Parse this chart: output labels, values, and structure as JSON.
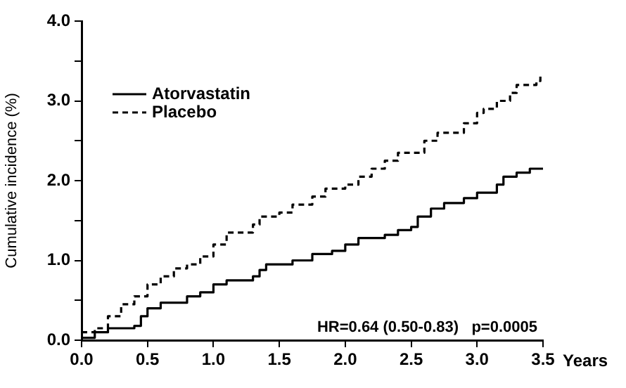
{
  "chart_data": {
    "type": "step",
    "xlabel": "Years",
    "ylabel": "Cumulative incidence (%)",
    "xlim": [
      0,
      3.5
    ],
    "xticks": [
      {
        "value": 0,
        "label": "0.0"
      },
      {
        "value": 0.5,
        "label": "0.5"
      },
      {
        "value": 1,
        "label": "1.0"
      },
      {
        "value": 1.5,
        "label": "1.5"
      },
      {
        "value": 2,
        "label": "2.0"
      },
      {
        "value": 2.5,
        "label": "2.5"
      },
      {
        "value": 3,
        "label": "3.0"
      },
      {
        "value": 3.5,
        "label": "3.5"
      }
    ],
    "ylim": [
      0,
      4
    ],
    "yticks": [
      {
        "value": 0,
        "label": "0.0"
      },
      {
        "value": 0.5,
        "label": null
      },
      {
        "value": 1,
        "label": "1.0"
      },
      {
        "value": 1.5,
        "label": null
      },
      {
        "value": 2,
        "label": "2.0"
      },
      {
        "value": 2.5,
        "label": null
      },
      {
        "value": 3,
        "label": "3.0"
      },
      {
        "value": 3.5,
        "label": null
      },
      {
        "value": 4,
        "label": "4.0"
      }
    ],
    "legend": "top left",
    "grid": false,
    "marker": "none",
    "annotations": [
      "HR=0.64 (0.50-0.83)   p=0.0005"
    ],
    "series": [
      {
        "name": "Atorvastatin",
        "color": "#000000",
        "line_style": "solid",
        "x": [
          0,
          0.1,
          0.2,
          0.4,
          0.45,
          0.5,
          0.6,
          0.8,
          0.9,
          1.0,
          1.1,
          1.3,
          1.35,
          1.4,
          1.6,
          1.75,
          1.9,
          2.0,
          2.1,
          2.3,
          2.4,
          2.5,
          2.55,
          2.65,
          2.75,
          2.9,
          3.0,
          3.15,
          3.2,
          3.3,
          3.4,
          3.5
        ],
        "values": [
          0.03,
          0.1,
          0.15,
          0.18,
          0.3,
          0.4,
          0.47,
          0.55,
          0.6,
          0.7,
          0.75,
          0.8,
          0.88,
          0.95,
          1.0,
          1.08,
          1.12,
          1.2,
          1.28,
          1.32,
          1.38,
          1.42,
          1.55,
          1.65,
          1.72,
          1.78,
          1.85,
          1.95,
          2.05,
          2.1,
          2.15,
          2.15
        ]
      },
      {
        "name": "Placebo",
        "color": "#000000",
        "line_style": "dashed",
        "x": [
          0,
          0.1,
          0.2,
          0.3,
          0.4,
          0.5,
          0.6,
          0.7,
          0.8,
          0.9,
          1.0,
          1.1,
          1.3,
          1.35,
          1.5,
          1.6,
          1.75,
          1.85,
          2.0,
          2.1,
          2.2,
          2.3,
          2.4,
          2.6,
          2.7,
          2.9,
          3.0,
          3.05,
          3.15,
          3.25,
          3.3,
          3.45,
          3.48
        ],
        "values": [
          0.1,
          0.15,
          0.3,
          0.45,
          0.55,
          0.7,
          0.8,
          0.9,
          0.95,
          1.05,
          1.2,
          1.35,
          1.45,
          1.55,
          1.6,
          1.7,
          1.8,
          1.9,
          1.95,
          2.05,
          2.15,
          2.25,
          2.35,
          2.5,
          2.6,
          2.72,
          2.85,
          2.9,
          3.0,
          3.1,
          3.2,
          3.25,
          3.35
        ]
      }
    ]
  }
}
